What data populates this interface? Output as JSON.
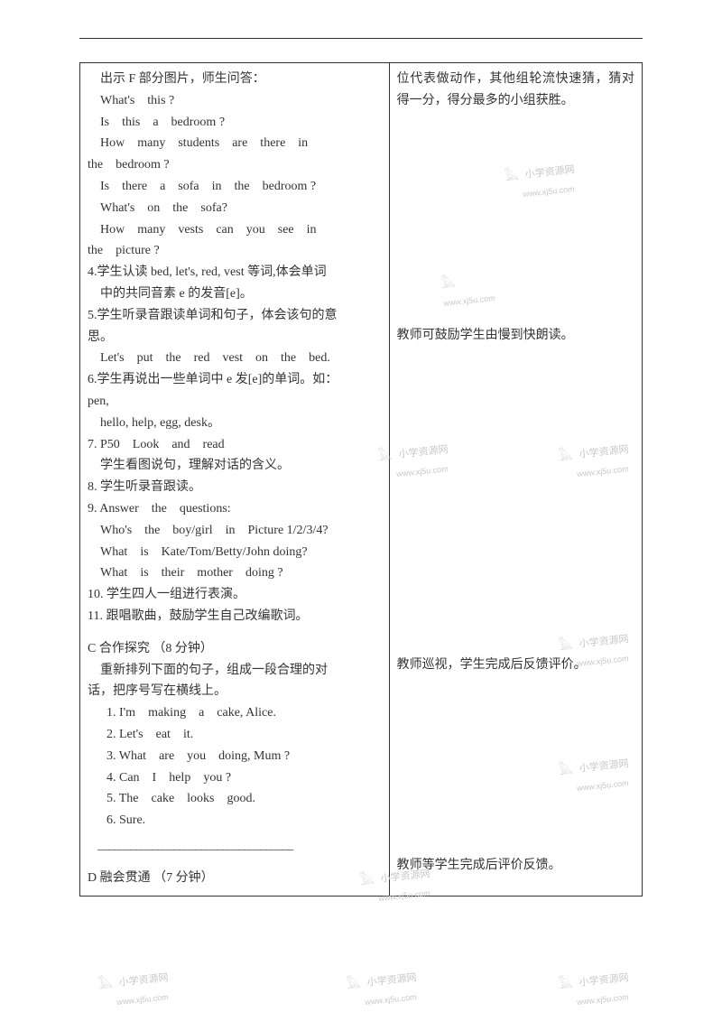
{
  "leftCell": {
    "lines": [
      {
        "text": "出示 F 部分图片，师生问答：",
        "cls": "indent1"
      },
      {
        "text": "What's　this ?",
        "cls": "indent1"
      },
      {
        "text": "Is　this　a　bedroom ?",
        "cls": "indent1"
      },
      {
        "text": "How　many　students　are　there　in",
        "cls": "indent1"
      },
      {
        "text": "the　bedroom ?",
        "cls": ""
      },
      {
        "text": "Is　there　a　sofa　in　the　bedroom ?",
        "cls": "indent1"
      },
      {
        "text": "What's　on　the　sofa?",
        "cls": "indent1"
      },
      {
        "text": "How　many　vests　can　you　see　in",
        "cls": "indent1"
      },
      {
        "text": "the　picture ?",
        "cls": ""
      },
      {
        "text": "4.学生认读 bed, let's, red, vest 等词,体会单词",
        "cls": ""
      },
      {
        "text": "中的共同音素 e 的发音[e]。",
        "cls": "indent1"
      },
      {
        "text": "5.学生听录音跟读单词和句子，体会该句的意",
        "cls": ""
      },
      {
        "text": "思。",
        "cls": ""
      },
      {
        "text": "Let's　put　the　red　vest　on　the　bed.",
        "cls": "indent1"
      },
      {
        "text": "6.学生再说出一些单词中 e 发[e]的单词。如：",
        "cls": ""
      },
      {
        "text": "pen,",
        "cls": ""
      },
      {
        "text": "hello, help, egg, desk。",
        "cls": "indent1"
      },
      {
        "text": "7. P50　Look　and　read",
        "cls": ""
      },
      {
        "text": "学生看图说句，理解对话的含义。",
        "cls": "indent1"
      },
      {
        "text": "8.  学生听录音跟读。",
        "cls": ""
      },
      {
        "text": "9. Answer　the　questions:",
        "cls": ""
      },
      {
        "text": "Who's　the　boy/girl　in　Picture 1/2/3/4?",
        "cls": "indent1"
      },
      {
        "text": "What　is　Kate/Tom/Betty/John doing?",
        "cls": "indent1"
      },
      {
        "text": "What　is　their　mother　doing ?",
        "cls": "indent1"
      },
      {
        "text": "10.  学生四人一组进行表演。",
        "cls": ""
      },
      {
        "text": "11.  跟唱歌曲，鼓励学生自己改编歌词。",
        "cls": ""
      },
      {
        "text": "",
        "cls": "spacer"
      },
      {
        "text": "C 合作探究 （8 分钟）",
        "cls": ""
      },
      {
        "text": "重新排列下面的句子，组成一段合理的对",
        "cls": "indent1"
      },
      {
        "text": "话，把序号写在横线上。",
        "cls": ""
      },
      {
        "text": "1. I'm　making　a　cake, Alice.",
        "cls": "indent2"
      },
      {
        "text": "2. Let's　eat　it.",
        "cls": "indent2"
      },
      {
        "text": "3. What　are　you　doing, Mum ?",
        "cls": "indent2"
      },
      {
        "text": "4. Can　I　help　you ?",
        "cls": "indent2"
      },
      {
        "text": "5. The　cake　looks　good.",
        "cls": "indent2"
      },
      {
        "text": "6. Sure.",
        "cls": "indent2"
      },
      {
        "text": "____________________________________",
        "cls": "blank-line"
      },
      {
        "text": "",
        "cls": "spacer"
      },
      {
        "text": "D 融会贯通 （7 分钟）",
        "cls": ""
      }
    ]
  },
  "rightCell": {
    "top": "位代表做动作，其他组轮流快速猜，猜对得一分，得分最多的小组获胜。",
    "mid": "教师可鼓励学生由慢到快朗读。",
    "mid2": "教师巡视，学生完成后反馈评价。",
    "bottom": "教师等学生完成后评价反馈。"
  },
  "watermark": {
    "label": "小学资源网",
    "url": "www.xj5u.com"
  }
}
